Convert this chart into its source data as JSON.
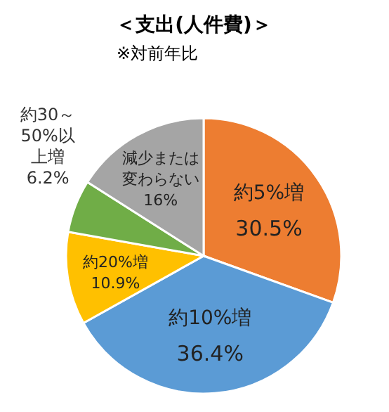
{
  "chart_data": {
    "type": "pie",
    "title": "＜支出(人件費)＞",
    "subtitle": "※対前年比",
    "categories": [
      "約5%増",
      "約10%増",
      "約20%増",
      "約30～50%以上増",
      "減少または変わらない"
    ],
    "values": [
      30.5,
      36.4,
      10.9,
      6.2,
      16
    ],
    "value_labels": [
      "30.5%",
      "36.4%",
      "10.9%",
      "6.2%",
      "16%"
    ],
    "colors": [
      "#ed7d31",
      "#5b9bd5",
      "#ffc000",
      "#70ad47",
      "#a5a5a5"
    ]
  }
}
